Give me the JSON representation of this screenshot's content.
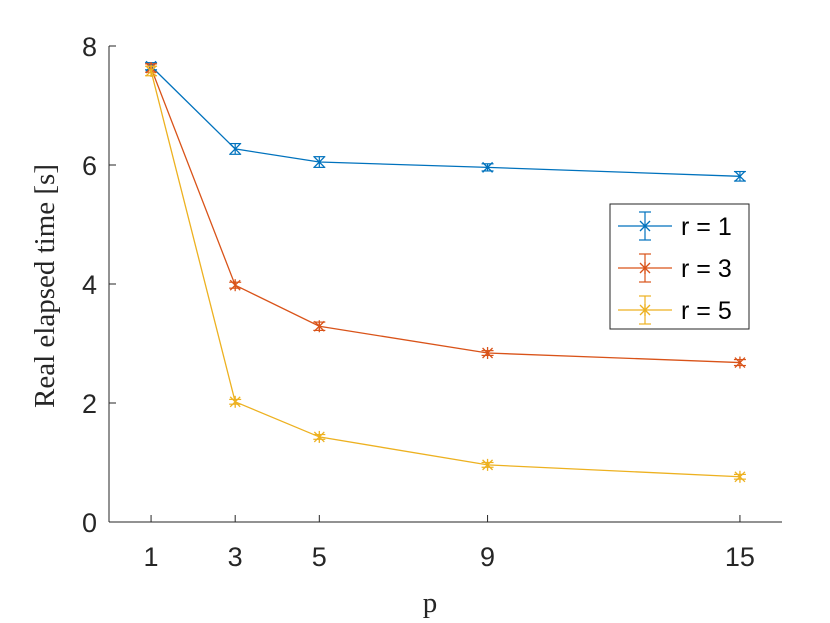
{
  "chart_data": {
    "type": "line",
    "xlabel": "p",
    "ylabel": "Real elapsed time [s]",
    "x": [
      1,
      3,
      5,
      9,
      15
    ],
    "xlim": [
      0,
      16
    ],
    "ylim": [
      0,
      8
    ],
    "xticks": [
      1,
      3,
      5,
      9,
      15
    ],
    "yticks": [
      0,
      2,
      4,
      6,
      8
    ],
    "grid": false,
    "legend_position": "right",
    "series": [
      {
        "name": "r = 1",
        "color": "#0072BD",
        "marker": "x",
        "values": [
          7.66,
          6.27,
          6.05,
          5.96,
          5.81
        ],
        "errors": [
          0.06,
          0.09,
          0.09,
          0.06,
          0.08
        ]
      },
      {
        "name": "r = 3",
        "color": "#D95319",
        "marker": "asterisk",
        "values": [
          7.63,
          3.98,
          3.29,
          2.84,
          2.68
        ],
        "errors": [
          0.07,
          0.05,
          0.07,
          0.04,
          0.05
        ]
      },
      {
        "name": "r = 5",
        "color": "#EDB120",
        "marker": "asterisk",
        "values": [
          7.58,
          2.02,
          1.43,
          0.96,
          0.76
        ],
        "errors": [
          0.08,
          0.04,
          0.04,
          0.04,
          0.04
        ]
      }
    ]
  }
}
